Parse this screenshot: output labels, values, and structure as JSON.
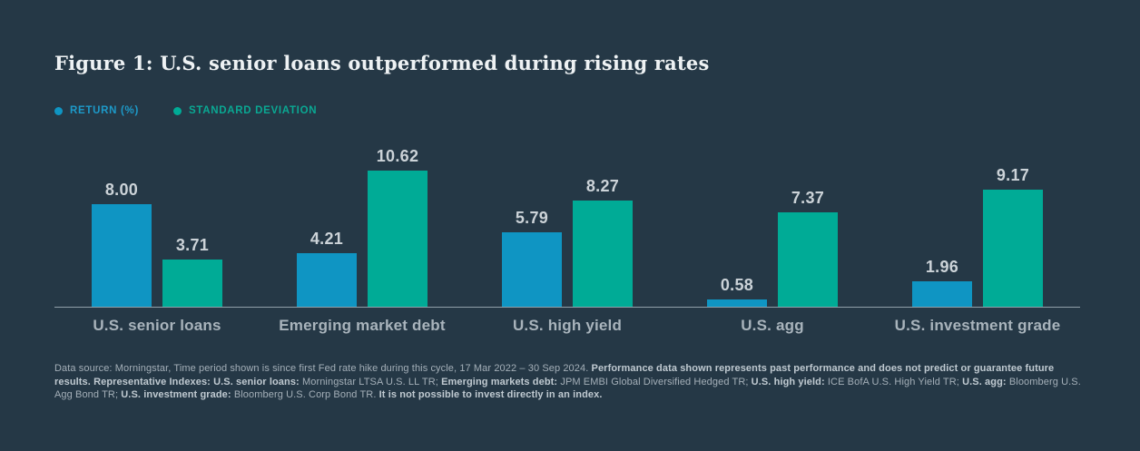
{
  "title": "Figure 1: U.S. senior loans outperformed during rising rates",
  "legend": [
    {
      "label": "RETURN (%)",
      "color": "#0f95c3"
    },
    {
      "label": "STANDARD DEVIATION",
      "color": "#00ab96"
    }
  ],
  "chart_data": {
    "type": "bar",
    "title": "Figure 1: U.S. senior loans outperformed during rising rates",
    "categories": [
      "U.S. senior loans",
      "Emerging market debt",
      "U.S. high yield",
      "U.S. agg",
      "U.S. investment grade"
    ],
    "series": [
      {
        "name": "RETURN (%)",
        "color": "#0f95c3",
        "values": [
          8.0,
          4.21,
          5.79,
          0.58,
          1.96
        ]
      },
      {
        "name": "STANDARD DEVIATION",
        "color": "#00ab96",
        "values": [
          3.71,
          10.62,
          8.27,
          7.37,
          9.17
        ]
      }
    ],
    "value_label_decimals": 2,
    "ylim": [
      0,
      10.62
    ],
    "grid": false,
    "legend_position": "top-left",
    "xlabel": "",
    "ylabel": ""
  },
  "colors": {
    "background": "#253846",
    "return_bar": "#0f95c3",
    "stddev_bar": "#00ab96",
    "axis_line": "#91a0aa",
    "title_text": "#eef2f4"
  },
  "footnote_segments": [
    {
      "text": "Data source: Morningstar, Time period shown is since first Fed rate hike during this cycle, 17 Mar 2022 – 30 Sep 2024. ",
      "bold": false
    },
    {
      "text": "Performance data shown represents past performance and does not predict or guarantee future results. ",
      "bold": true
    },
    {
      "text": "Representative Indexes: U.S. senior loans: ",
      "bold": true
    },
    {
      "text": "Morningstar LTSA U.S. LL TR; ",
      "bold": false
    },
    {
      "text": "Emerging markets debt: ",
      "bold": true
    },
    {
      "text": "JPM EMBI Global Diversified Hedged TR; ",
      "bold": false
    },
    {
      "text": "U.S. high yield: ",
      "bold": true
    },
    {
      "text": "ICE BofA U.S. High Yield TR; ",
      "bold": false
    },
    {
      "text": "U.S. agg: ",
      "bold": true
    },
    {
      "text": "Bloomberg U.S. Agg Bond TR; ",
      "bold": false
    },
    {
      "text": "U.S. investment grade: ",
      "bold": true
    },
    {
      "text": "Bloomberg U.S. Corp Bond TR. ",
      "bold": false
    },
    {
      "text": "It is not possible to invest directly in an index.",
      "bold": true
    }
  ]
}
